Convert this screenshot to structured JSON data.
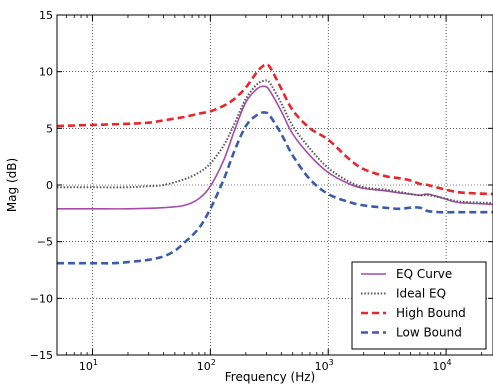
{
  "chart_data": {
    "type": "line",
    "xlabel": "Frequency (Hz)",
    "ylabel": "Mag (dB)",
    "x_scale": "log",
    "xlim": [
      5,
      25000
    ],
    "ylim": [
      -15,
      15
    ],
    "grid": true,
    "grid_style": "dotted",
    "legend_position": "lower-right",
    "x_ticks": [
      {
        "value": 10,
        "base": "10",
        "exp": "1"
      },
      {
        "value": 100,
        "base": "10",
        "exp": "2"
      },
      {
        "value": 1000,
        "base": "10",
        "exp": "3"
      },
      {
        "value": 10000,
        "base": "10",
        "exp": "4"
      }
    ],
    "y_ticks": [
      {
        "value": -15,
        "label": "−15"
      },
      {
        "value": -10,
        "label": "−10"
      },
      {
        "value": -5,
        "label": "−5"
      },
      {
        "value": 0,
        "label": "0"
      },
      {
        "value": 5,
        "label": "5"
      },
      {
        "value": 10,
        "label": "10"
      },
      {
        "value": 15,
        "label": "15"
      }
    ],
    "series": [
      {
        "name": "EQ Curve",
        "color": "#a64ca6",
        "style": "solid",
        "x": [
          5,
          10,
          20,
          40,
          60,
          80,
          100,
          130,
          160,
          200,
          250,
          290,
          320,
          400,
          500,
          700,
          1000,
          1500,
          2000,
          3000,
          4000,
          5000,
          6000,
          7000,
          9000,
          12000,
          15000,
          25000
        ],
        "y": [
          -2.1,
          -2.1,
          -2.1,
          -2.0,
          -1.8,
          -1.2,
          -0.1,
          2.2,
          4.8,
          7.3,
          8.5,
          8.7,
          8.3,
          6.5,
          4.5,
          2.6,
          1.1,
          0.1,
          -0.3,
          -0.5,
          -0.7,
          -0.8,
          -0.9,
          -0.8,
          -1.1,
          -1.5,
          -1.6,
          -1.7
        ]
      },
      {
        "name": "Ideal EQ",
        "color": "#555555",
        "style": "dotted",
        "x": [
          5,
          10,
          20,
          30,
          40,
          60,
          80,
          100,
          130,
          160,
          200,
          250,
          290,
          320,
          400,
          500,
          700,
          1000,
          1500,
          2000,
          3000,
          4000,
          5000,
          6000,
          7000,
          9000,
          12000,
          15000,
          25000
        ],
        "y": [
          -0.2,
          -0.2,
          -0.2,
          -0.1,
          0.0,
          0.5,
          1.1,
          1.9,
          3.5,
          5.4,
          7.6,
          8.9,
          9.2,
          9.0,
          7.2,
          5.2,
          3.2,
          1.5,
          0.3,
          -0.2,
          -0.4,
          -0.6,
          -0.8,
          -0.9,
          -0.9,
          -1.1,
          -1.4,
          -1.5,
          -1.6
        ]
      },
      {
        "name": "High Bound",
        "color": "#e8262b",
        "style": "dashed",
        "x": [
          5,
          10,
          20,
          30,
          40,
          60,
          80,
          100,
          130,
          160,
          200,
          250,
          290,
          320,
          400,
          500,
          700,
          1000,
          1500,
          2000,
          3000,
          4000,
          5000,
          6000,
          7000,
          9000,
          12000,
          15000,
          25000
        ],
        "y": [
          5.2,
          5.3,
          5.4,
          5.5,
          5.7,
          6.0,
          6.3,
          6.5,
          7.0,
          7.6,
          8.6,
          10.0,
          10.6,
          10.4,
          8.5,
          6.6,
          5.0,
          4.0,
          2.3,
          1.4,
          0.8,
          0.6,
          0.4,
          0.1,
          0.0,
          -0.3,
          -0.6,
          -0.7,
          -0.8
        ]
      },
      {
        "name": "Low Bound",
        "color": "#3b5cad",
        "style": "dashed",
        "x": [
          5,
          10,
          15,
          20,
          30,
          40,
          50,
          60,
          80,
          100,
          130,
          160,
          200,
          250,
          290,
          320,
          400,
          500,
          700,
          1000,
          1500,
          2000,
          3000,
          4000,
          5000,
          6000,
          7000,
          9000,
          12000,
          15000,
          25000
        ],
        "y": [
          -6.9,
          -6.9,
          -6.9,
          -6.8,
          -6.6,
          -6.3,
          -5.8,
          -5.1,
          -3.8,
          -2.1,
          0.5,
          3.0,
          5.2,
          6.2,
          6.4,
          6.1,
          4.5,
          2.6,
          0.5,
          -0.8,
          -1.5,
          -1.8,
          -2.0,
          -2.1,
          -2.0,
          -2.0,
          -2.3,
          -2.4,
          -2.4,
          -2.4,
          -2.4
        ]
      }
    ]
  }
}
